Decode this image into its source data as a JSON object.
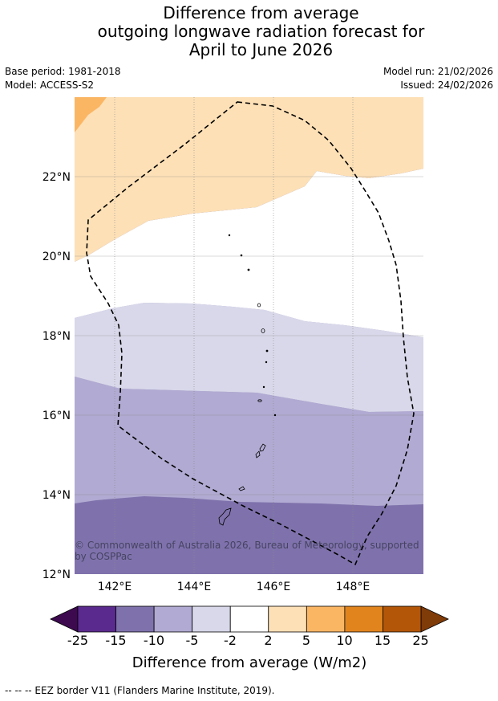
{
  "title": {
    "line1": "Difference from average",
    "line2": "outgoing longwave radiation forecast for",
    "line3": "April to June 2026"
  },
  "meta": {
    "base_period": "Base period: 1981-2018",
    "model": "Model: ACCESS-S2",
    "model_run": "Model run: 21/02/2026",
    "issued": "Issued: 24/02/2026"
  },
  "map": {
    "lon_range": [
      141,
      149.7
    ],
    "lat_range": [
      12,
      24
    ],
    "x_ticks": [
      "142°E",
      "144°E",
      "146°E",
      "148°E"
    ],
    "y_ticks": [
      "12°N",
      "14°N",
      "16°N",
      "18°N",
      "20°N",
      "22°N"
    ],
    "copyright": "© Commonwealth of Australia 2026, Bureau of Meteorology, supported by COSPPac"
  },
  "colorbar": {
    "labels": [
      "-25",
      "-15",
      "-10",
      "-5",
      "-2",
      "2",
      "5",
      "10",
      "15",
      "25"
    ],
    "colors": [
      "#5a2a8e",
      "#7f72ac",
      "#b1aad2",
      "#d8d8ea",
      "#ffffff",
      "#fde0b6",
      "#fbb664",
      "#e1841e",
      "#b35608"
    ],
    "extend_low_color": "#3d0a4f",
    "extend_high_color": "#7f3b08",
    "title": "Difference from average (W/m2)"
  },
  "legend": {
    "eez": "-- -- -- EEZ border V11 (Flanders Marine Institute, 2019)."
  }
}
